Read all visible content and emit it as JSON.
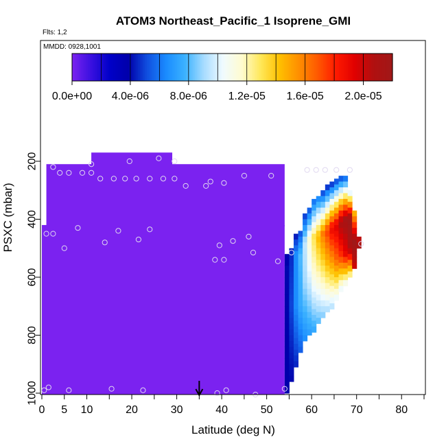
{
  "chart_data": {
    "type": "heatmap",
    "title": "ATOM3 Northeast_Pacific_1 Isoprene_GMI",
    "annotations": {
      "flights": "Flts: 1,2",
      "dates": "MMDD: 0928,1001"
    },
    "xlabel": "Latitude (deg N)",
    "ylabel": "PSXC (mbar)",
    "xlim": [
      0,
      85
    ],
    "ylim": [
      1000,
      50
    ],
    "x_ticks": [
      0,
      5,
      10,
      20,
      30,
      40,
      50,
      60,
      70,
      80
    ],
    "x_tick_labels": [
      "0",
      "5",
      "10",
      "20",
      "30",
      "40",
      "50",
      "60",
      "70",
      "80"
    ],
    "y_ticks": [
      200,
      400,
      600,
      800,
      1000
    ],
    "y_tick_labels": [
      "200",
      "400",
      "600",
      "800",
      "1000"
    ],
    "colorbar": {
      "min": 0,
      "max": 2.2e-05,
      "tick_values": [
        0,
        4e-06,
        8e-06,
        1.2e-05,
        1.6e-05,
        2e-05
      ],
      "tick_labels": [
        "0.0e+00",
        "4.0e-06",
        "8.0e-06",
        "1.2e-05",
        "1.6e-05",
        "2.0e-05"
      ],
      "colors": [
        "#7b22f0",
        "#3a10e0",
        "#0000c8",
        "#0000aa",
        "#1050e0",
        "#1a8cff",
        "#3cb2ff",
        "#a8dcff",
        "#f0fbff",
        "#fffbd0",
        "#ffe85a",
        "#ffc000",
        "#ff9000",
        "#ff5a00",
        "#ff1a00",
        "#e00000",
        "#b01010",
        "#a01818"
      ]
    },
    "marker_latitude": 35,
    "field": {
      "background_value": 0,
      "coverage": [
        {
          "lat_min": 11,
          "lat_max": 29,
          "p_top": 170
        },
        {
          "lat_min": 0,
          "lat_max": 54,
          "p_top": 420,
          "p_bottom": 1000
        },
        {
          "lat_min": 1,
          "lat_max": 54,
          "p_top": 210,
          "p_bottom": 420
        }
      ],
      "columns": [
        {
          "lat": 54.5,
          "profile": [
            [
              520,
              3.5e-06
            ],
            [
              560,
              4e-06
            ],
            [
              1000,
              3.8e-06
            ]
          ]
        },
        {
          "lat": 55.5,
          "profile": [
            [
              500,
              4.5e-06
            ],
            [
              700,
              5e-06
            ],
            [
              950,
              4e-06
            ]
          ]
        },
        {
          "lat": 56.5,
          "profile": [
            [
              450,
              4e-06
            ],
            [
              520,
              6.5e-06
            ],
            [
              700,
              6.5e-06
            ],
            [
              900,
              4.5e-06
            ]
          ]
        },
        {
          "lat": 57.5,
          "profile": [
            [
              440,
              5e-06
            ],
            [
              520,
              8e-06
            ],
            [
              700,
              7.5e-06
            ],
            [
              850,
              5.5e-06
            ]
          ]
        },
        {
          "lat": 58.5,
          "profile": [
            [
              380,
              4.5e-06
            ],
            [
              480,
              9.5e-06
            ],
            [
              620,
              9e-06
            ],
            [
              820,
              6.5e-06
            ]
          ]
        },
        {
          "lat": 59.5,
          "profile": [
            [
              360,
              5e-06
            ],
            [
              470,
              1.15e-05
            ],
            [
              600,
              1e-05
            ],
            [
              800,
              7e-06
            ]
          ]
        },
        {
          "lat": 60.5,
          "profile": [
            [
              330,
              5.5e-06
            ],
            [
              460,
              1.3e-05
            ],
            [
              580,
              1.15e-05
            ],
            [
              780,
              7.5e-06
            ]
          ]
        },
        {
          "lat": 61.5,
          "profile": [
            [
              320,
              6e-06
            ],
            [
              460,
              1.45e-05
            ],
            [
              560,
              1.25e-05
            ],
            [
              760,
              8e-06
            ]
          ]
        },
        {
          "lat": 62.5,
          "profile": [
            [
              300,
              4.5e-06
            ],
            [
              450,
              1.6e-05
            ],
            [
              550,
              1.35e-05
            ],
            [
              740,
              8.5e-06
            ]
          ]
        },
        {
          "lat": 63.5,
          "profile": [
            [
              280,
              4e-06
            ],
            [
              440,
              1.75e-05
            ],
            [
              550,
              1.45e-05
            ],
            [
              720,
              9e-06
            ]
          ]
        },
        {
          "lat": 64.5,
          "profile": [
            [
              270,
              4e-06
            ],
            [
              430,
              1.9e-05
            ],
            [
              540,
              1.55e-05
            ],
            [
              700,
              9.5e-06
            ]
          ]
        },
        {
          "lat": 65.5,
          "profile": [
            [
              260,
              4.5e-06
            ],
            [
              420,
              1.95e-05
            ],
            [
              540,
              1.65e-05
            ],
            [
              680,
              1e-05
            ]
          ]
        },
        {
          "lat": 66.5,
          "profile": [
            [
              250,
              4.5e-06
            ],
            [
              410,
              2.1e-05
            ],
            [
              530,
              1.75e-05
            ],
            [
              640,
              1.05e-05
            ]
          ]
        },
        {
          "lat": 67.5,
          "profile": [
            [
              250,
              5e-06
            ],
            [
              400,
              2.15e-05
            ],
            [
              520,
              1.9e-05
            ],
            [
              620,
              1.1e-05
            ]
          ]
        },
        {
          "lat": 68.5,
          "profile": [
            [
              300,
              9e-06
            ],
            [
              400,
              2.2e-05
            ],
            [
              500,
              2.1e-05
            ],
            [
              590,
              1.25e-05
            ]
          ]
        },
        {
          "lat": 69.5,
          "profile": [
            [
              370,
              1.4e-05
            ],
            [
              480,
              2.2e-05
            ],
            [
              560,
              2e-05
            ]
          ]
        },
        {
          "lat": 70.5,
          "profile": [
            [
              460,
              2e-05
            ],
            [
              500,
              2.15e-05
            ]
          ]
        }
      ]
    },
    "sample_points": [
      {
        "lat": 0.5,
        "p": 990
      },
      {
        "lat": 1,
        "p": 450
      },
      {
        "lat": 1.5,
        "p": 980
      },
      {
        "lat": 2.5,
        "p": 450
      },
      {
        "lat": 2.5,
        "p": 220
      },
      {
        "lat": 4,
        "p": 240
      },
      {
        "lat": 5,
        "p": 500
      },
      {
        "lat": 6,
        "p": 240
      },
      {
        "lat": 6,
        "p": 990
      },
      {
        "lat": 8,
        "p": 430
      },
      {
        "lat": 9,
        "p": 240
      },
      {
        "lat": 11,
        "p": 210
      },
      {
        "lat": 11,
        "p": 240
      },
      {
        "lat": 13,
        "p": 260
      },
      {
        "lat": 14,
        "p": 480
      },
      {
        "lat": 15.5,
        "p": 985
      },
      {
        "lat": 16,
        "p": 260
      },
      {
        "lat": 17,
        "p": 440
      },
      {
        "lat": 18.5,
        "p": 260
      },
      {
        "lat": 19.5,
        "p": 200
      },
      {
        "lat": 21,
        "p": 260
      },
      {
        "lat": 21.5,
        "p": 470
      },
      {
        "lat": 22.5,
        "p": 990
      },
      {
        "lat": 24,
        "p": 260
      },
      {
        "lat": 24,
        "p": 435
      },
      {
        "lat": 26,
        "p": 190
      },
      {
        "lat": 27,
        "p": 260
      },
      {
        "lat": 29.5,
        "p": 200
      },
      {
        "lat": 29.5,
        "p": 260
      },
      {
        "lat": 32,
        "p": 285
      },
      {
        "lat": 36.5,
        "p": 285
      },
      {
        "lat": 37.5,
        "p": 270
      },
      {
        "lat": 38.5,
        "p": 540
      },
      {
        "lat": 39,
        "p": 1000
      },
      {
        "lat": 39.5,
        "p": 490
      },
      {
        "lat": 40.5,
        "p": 275
      },
      {
        "lat": 40.5,
        "p": 540
      },
      {
        "lat": 41,
        "p": 990
      },
      {
        "lat": 42.5,
        "p": 475
      },
      {
        "lat": 45,
        "p": 250
      },
      {
        "lat": 46,
        "p": 460
      },
      {
        "lat": 47,
        "p": 515
      },
      {
        "lat": 47.5,
        "p": 1005
      },
      {
        "lat": 51,
        "p": 250
      },
      {
        "lat": 52.5,
        "p": 545
      },
      {
        "lat": 54,
        "p": 985
      },
      {
        "lat": 55.5,
        "p": 515
      },
      {
        "lat": 59,
        "p": 230
      },
      {
        "lat": 61,
        "p": 230
      },
      {
        "lat": 63,
        "p": 230
      },
      {
        "lat": 65.5,
        "p": 230
      },
      {
        "lat": 68.5,
        "p": 230
      },
      {
        "lat": 71,
        "p": 485
      }
    ]
  }
}
